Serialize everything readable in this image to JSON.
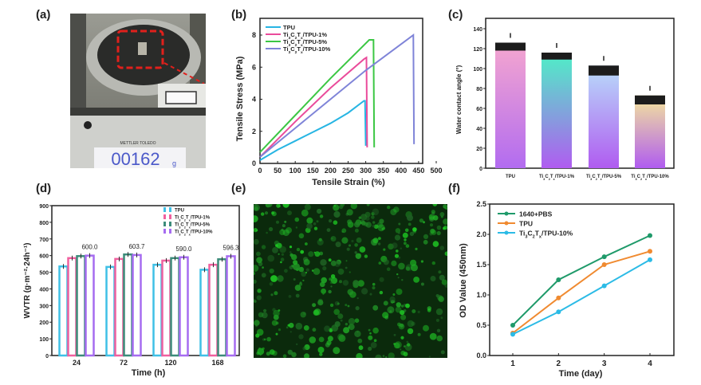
{
  "panels": {
    "a": {
      "label": "(a)",
      "scale_display": "00162",
      "scale_unit": "g",
      "scale_brand": "METTLER TOLEDO"
    },
    "b": {
      "label": "(b)"
    },
    "c": {
      "label": "(c)"
    },
    "d": {
      "label": "(d)"
    },
    "e": {
      "label": "(e)"
    },
    "f": {
      "label": "(f)"
    }
  },
  "colors": {
    "TPU": "#27b5e3",
    "Ti1": "#ea4b9b",
    "Ti5": "#3cc744",
    "Ti10": "#7f84d8",
    "d_TPU": "#3fc0e6",
    "d_Ti1": "#f0609f",
    "d_Ti5": "#3c8c7a",
    "d_Ti10": "#a66cf0",
    "f_PBS": "#1f9a6a",
    "f_TPU": "#f08a30",
    "f_Ti10": "#2cbbe6"
  },
  "chart_data": [
    {
      "id": "b",
      "type": "line",
      "title": "",
      "xlabel": "Tensile Strain (%)",
      "ylabel": "Tensile Stress (MPa)",
      "xlim": [
        0,
        500
      ],
      "ylim": [
        0,
        8.6
      ],
      "xticks": [
        "0",
        "50",
        "100",
        "150",
        "200",
        "250",
        "300",
        "350",
        "400",
        "450",
        "500"
      ],
      "yticks": [
        "0",
        "2",
        "4",
        "6",
        "8"
      ],
      "legend_position": "top-left",
      "series": [
        {
          "name": "TPU",
          "x": [
            0,
            50,
            100,
            150,
            200,
            250,
            295,
            298,
            300
          ],
          "y": [
            0.2,
            0.85,
            1.4,
            1.95,
            2.5,
            3.15,
            3.9,
            3.9,
            1.1
          ]
        },
        {
          "name": "Ti3C2Tx/TPU-1%",
          "x": [
            0,
            100,
            200,
            295,
            302,
            304
          ],
          "y": [
            0.4,
            2.6,
            4.7,
            6.5,
            6.6,
            1.0
          ]
        },
        {
          "name": "Ti3C2Tx/TPU-5%",
          "x": [
            0,
            100,
            200,
            310,
            322,
            324
          ],
          "y": [
            0.7,
            3.0,
            5.3,
            7.7,
            7.7,
            1.0
          ]
        },
        {
          "name": "Ti3C2Tx/TPU-10%",
          "x": [
            0,
            100,
            200,
            300,
            435,
            437
          ],
          "y": [
            0.4,
            2.2,
            4.0,
            5.8,
            8.0,
            1.2
          ]
        }
      ]
    },
    {
      "id": "c",
      "type": "bar",
      "title": "",
      "xlabel": "",
      "ylabel": "Water contact angle (°)",
      "ylim": [
        0,
        140
      ],
      "yticks": [
        "0",
        "20",
        "40",
        "60",
        "80",
        "100",
        "120",
        "140"
      ],
      "categories": [
        "TPU",
        "Ti3C2Tx/TPU-1%",
        "Ti3C2Tx/TPU-5%",
        "Ti3C2Tx/TPU-10%"
      ],
      "values": [
        126,
        116,
        103,
        73
      ],
      "error_low": [
        118,
        109,
        93,
        64
      ]
    },
    {
      "id": "d",
      "type": "bar",
      "title": "",
      "xlabel": "Time (h)",
      "ylabel": "WVTR (g·m⁻²·24h⁻¹)",
      "ylim": [
        0,
        900
      ],
      "yticks": [
        "0",
        "100",
        "200",
        "300",
        "400",
        "500",
        "600",
        "700",
        "800",
        "900"
      ],
      "categories": [
        "24",
        "72",
        "120",
        "168"
      ],
      "legend_position": "top-right",
      "series": [
        {
          "name": "TPU",
          "values": [
            535,
            532,
            545,
            515
          ]
        },
        {
          "name": "Ti3C2Tx/TPU-1%",
          "values": [
            585,
            580,
            570,
            545
          ]
        },
        {
          "name": "Ti3C2Tx/TPU-5%",
          "values": [
            597,
            607,
            585,
            578
          ]
        },
        {
          "name": "Ti3C2Tx/TPU-10%",
          "values": [
            600.0,
            603.7,
            590.0,
            596.3
          ]
        }
      ],
      "annotations": [
        "600.0",
        "603.7",
        "590.0",
        "596.3"
      ]
    },
    {
      "id": "f",
      "type": "line",
      "title": "",
      "xlabel": "Time (day)",
      "ylabel": "OD Value (450nm)",
      "xlim": [
        0.5,
        4.5
      ],
      "ylim": [
        0,
        2.5
      ],
      "xticks": [
        "1",
        "2",
        "3",
        "4"
      ],
      "yticks": [
        "0.0",
        "0.5",
        "1.0",
        "1.5",
        "2.0",
        "2.5"
      ],
      "legend_position": "top-left",
      "series": [
        {
          "name": "1640+PBS",
          "x": [
            1,
            2,
            3,
            4
          ],
          "y": [
            0.5,
            1.25,
            1.63,
            1.98
          ]
        },
        {
          "name": "TPU",
          "x": [
            1,
            2,
            3,
            4
          ],
          "y": [
            0.37,
            0.95,
            1.5,
            1.72
          ]
        },
        {
          "name": "Ti3C2Tx/TPU-10%",
          "x": [
            1,
            2,
            3,
            4
          ],
          "y": [
            0.35,
            0.72,
            1.15,
            1.58
          ]
        }
      ]
    }
  ]
}
